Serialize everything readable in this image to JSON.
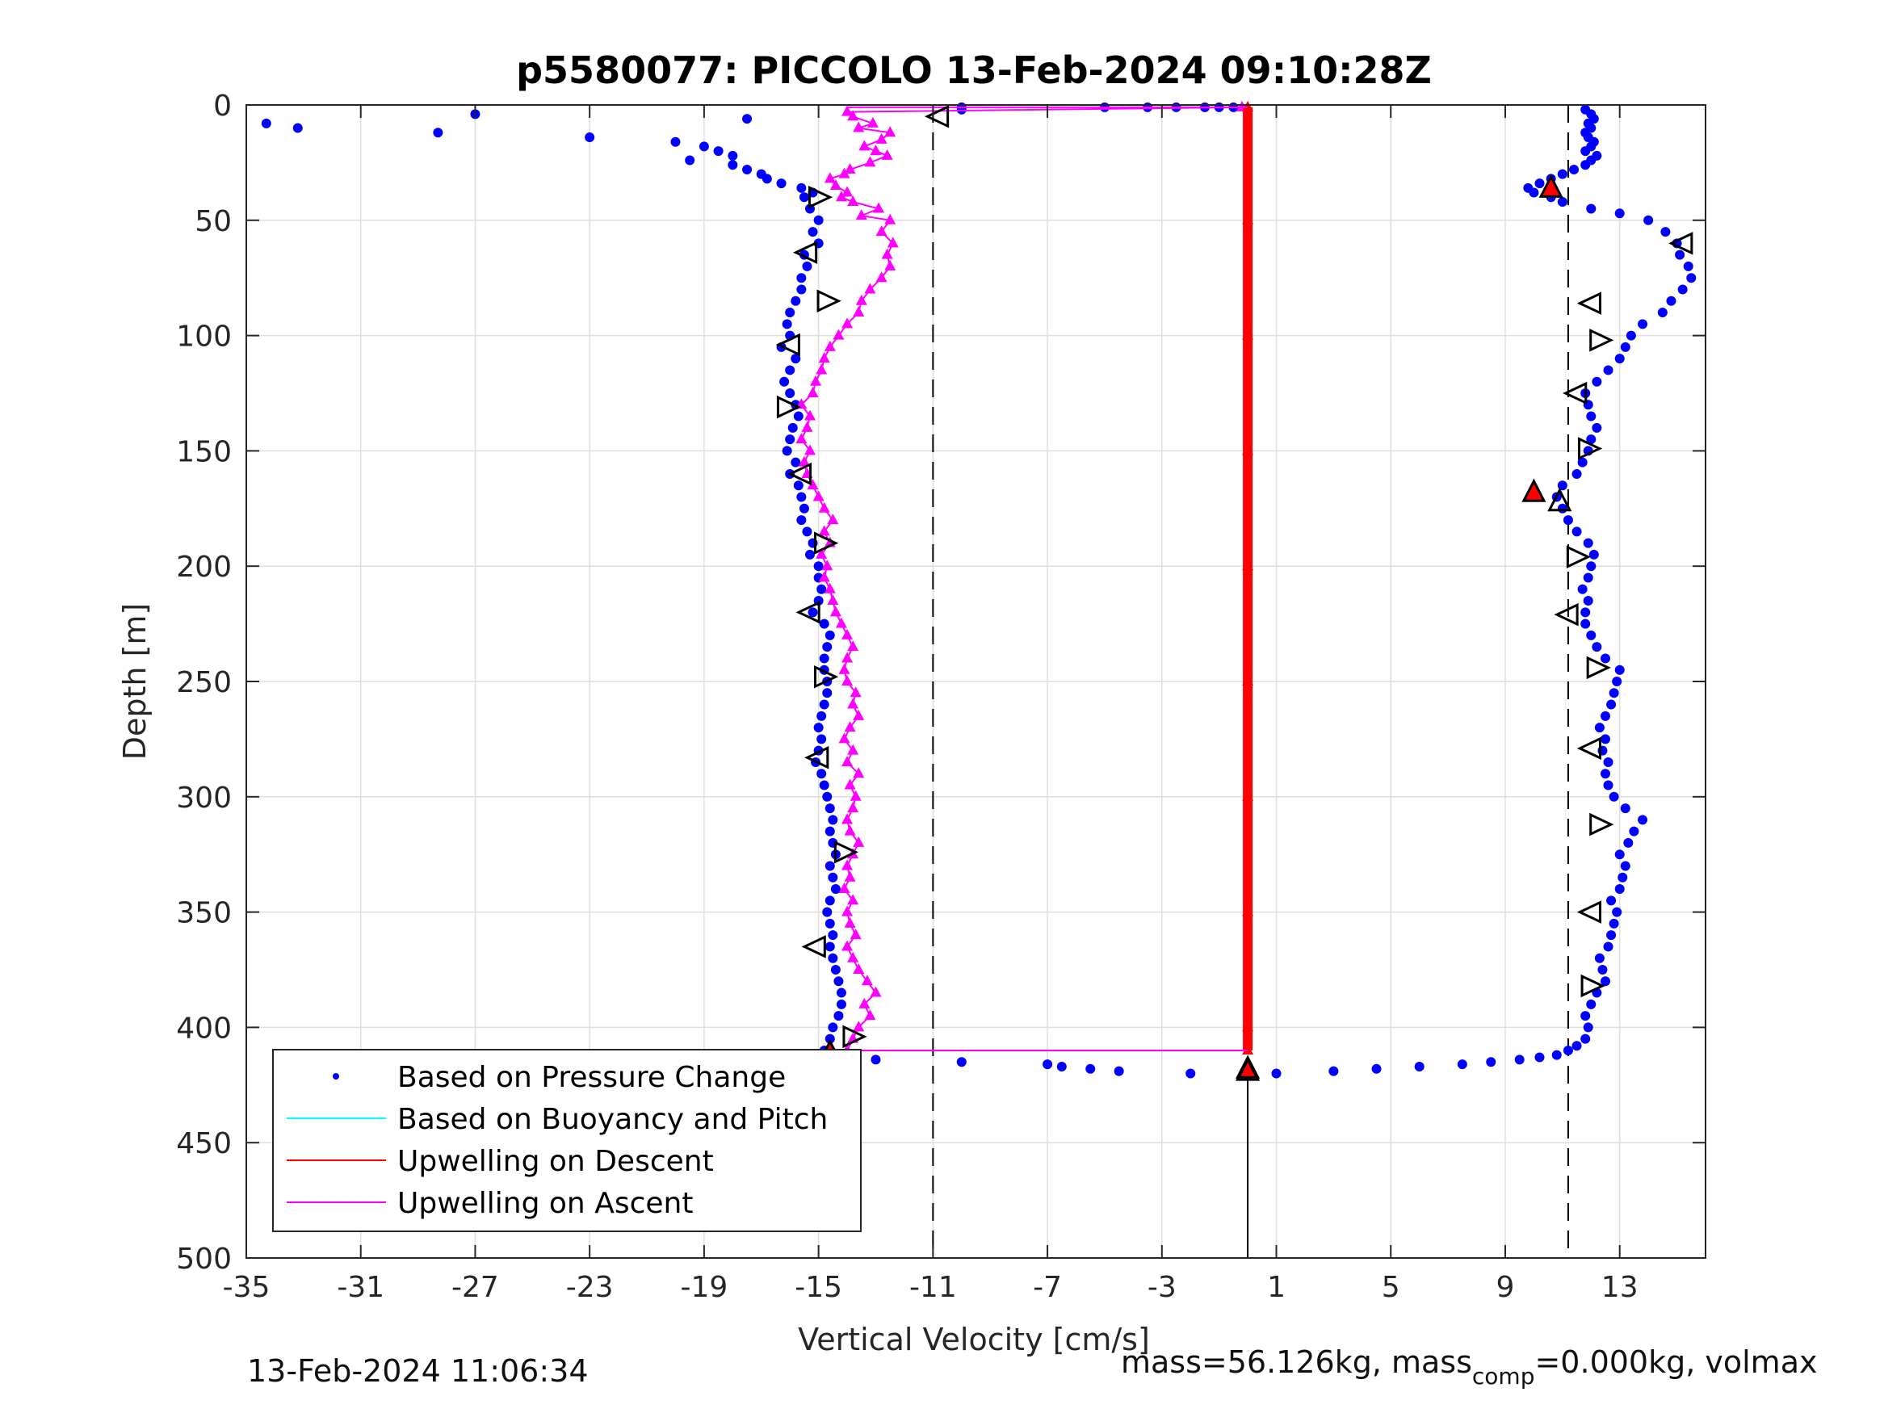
{
  "chart_data": {
    "type": "scatter",
    "title": "p5580077: PICCOLO 13-Feb-2024 09:10:28Z",
    "xlabel": "Vertical Velocity [cm/s]",
    "ylabel": "Depth [m]",
    "xlim": [
      -35,
      16
    ],
    "ylim": [
      0,
      500
    ],
    "y_reversed": true,
    "grid": true,
    "xticks": [
      "-35",
      "-31",
      "-27",
      "-23",
      "-19",
      "-15",
      "-11",
      "-7",
      "-3",
      "1",
      "5",
      "9",
      "13"
    ],
    "yticks": [
      "0",
      "50",
      "100",
      "150",
      "200",
      "250",
      "300",
      "350",
      "400",
      "450",
      "500"
    ],
    "legend_position": "bottom-left",
    "legend": [
      "Based on Pressure Change",
      "Based on Buoyancy and Pitch",
      "Upwelling on Descent",
      "Upwelling on Ascent"
    ],
    "colors": {
      "pressure": "#0000ff",
      "buoyancy": "#00ffff",
      "upwell_descent": "#ff0000",
      "upwell_ascent": "#ff00ff"
    },
    "reference_lines": {
      "dashed_x": [
        -11,
        11.2
      ],
      "solid_x": 0
    },
    "series": [
      {
        "name": "Based on Pressure Change",
        "profile": "descent",
        "depth": [
          2,
          4,
          6,
          8,
          10,
          12,
          14,
          16,
          18,
          20,
          22,
          24,
          26,
          28,
          30,
          32,
          34,
          36,
          38,
          40,
          45,
          50,
          55,
          60,
          65,
          70,
          75,
          80,
          85,
          90,
          95,
          100,
          105,
          110,
          115,
          120,
          125,
          130,
          135,
          140,
          145,
          150,
          155,
          160,
          165,
          170,
          175,
          180,
          185,
          190,
          195,
          200,
          205,
          210,
          215,
          220,
          225,
          230,
          235,
          240,
          245,
          250,
          255,
          260,
          265,
          270,
          275,
          280,
          285,
          290,
          295,
          300,
          305,
          310,
          315,
          320,
          325,
          330,
          335,
          340,
          345,
          350,
          355,
          360,
          365,
          370,
          375,
          380,
          385,
          390,
          395,
          400,
          405,
          410,
          412
        ],
        "velocity": [
          -10.0,
          -27.0,
          -17.5,
          -34.3,
          -33.2,
          -28.3,
          -23.0,
          -20.0,
          -19.0,
          -18.5,
          -18.0,
          -19.5,
          -18.0,
          -17.5,
          -17.0,
          -16.8,
          -16.3,
          -15.6,
          -15.2,
          -15.5,
          -15.3,
          -15.0,
          -15.2,
          -15.0,
          -15.5,
          -15.4,
          -15.6,
          -15.6,
          -15.8,
          -16.0,
          -16.1,
          -16.0,
          -16.3,
          -15.8,
          -16.0,
          -16.2,
          -16.0,
          -15.8,
          -15.7,
          -15.9,
          -16.0,
          -16.1,
          -15.8,
          -16.0,
          -15.7,
          -15.6,
          -15.5,
          -15.6,
          -15.4,
          -15.2,
          -15.3,
          -15.0,
          -15.0,
          -14.9,
          -15.0,
          -15.2,
          -14.8,
          -14.6,
          -14.7,
          -14.8,
          -14.8,
          -14.7,
          -14.7,
          -14.8,
          -14.9,
          -15.0,
          -14.9,
          -15.0,
          -15.1,
          -14.9,
          -14.8,
          -14.7,
          -14.6,
          -14.5,
          -14.6,
          -14.5,
          -14.4,
          -14.6,
          -14.5,
          -14.4,
          -14.6,
          -14.7,
          -14.6,
          -14.5,
          -14.6,
          -14.5,
          -14.4,
          -14.3,
          -14.2,
          -14.2,
          -14.3,
          -14.5,
          -14.6,
          -14.8,
          -14.5
        ]
      },
      {
        "name": "Based on Pressure Change",
        "profile": "descent-surface",
        "depth": [
          1,
          1,
          1,
          1,
          1,
          1,
          1
        ],
        "velocity": [
          -10.0,
          -5.0,
          -3.5,
          -2.5,
          -1.5,
          -1.0,
          -0.5
        ]
      },
      {
        "name": "Based on Pressure Change",
        "profile": "apogee",
        "depth": [
          414,
          415,
          416,
          417,
          418,
          419,
          420,
          421
        ],
        "velocity": [
          -13.0,
          -10.0,
          -7.0,
          -6.5,
          -5.5,
          -4.5,
          -2.0,
          0.0
        ]
      },
      {
        "name": "Based on Pressure Change",
        "profile": "ascent",
        "depth": [
          420,
          419,
          418,
          417,
          416,
          415,
          414,
          413,
          412,
          410,
          408,
          405,
          400,
          395,
          390,
          385,
          380,
          375,
          370,
          365,
          360,
          355,
          350,
          345,
          340,
          335,
          330,
          325,
          320,
          315,
          310,
          305,
          300,
          295,
          290,
          285,
          280,
          275,
          270,
          265,
          260,
          255,
          250,
          245,
          240,
          235,
          230,
          225,
          220,
          215,
          210,
          205,
          200,
          195,
          190,
          185,
          180,
          175,
          170,
          165,
          160,
          155,
          150,
          145,
          140,
          135,
          130,
          125,
          120,
          115,
          110,
          105,
          100,
          95,
          90,
          85,
          80,
          75,
          70,
          65,
          60,
          55,
          50,
          47,
          45,
          42,
          40,
          38,
          36,
          34,
          32,
          30,
          28,
          26,
          24,
          22,
          20,
          18,
          16,
          14,
          12,
          10,
          8,
          6,
          4,
          2
        ],
        "velocity": [
          1.0,
          3.0,
          4.5,
          6.0,
          7.5,
          8.5,
          9.5,
          10.2,
          10.8,
          11.2,
          11.5,
          11.8,
          11.9,
          11.8,
          12.0,
          12.2,
          12.5,
          12.4,
          12.3,
          12.6,
          12.7,
          12.8,
          12.9,
          12.7,
          13.0,
          13.1,
          13.2,
          13.0,
          13.3,
          13.5,
          13.8,
          13.2,
          12.8,
          12.6,
          12.5,
          12.6,
          12.4,
          12.5,
          12.3,
          12.5,
          12.7,
          12.8,
          12.9,
          13.0,
          12.5,
          12.2,
          12.0,
          11.8,
          11.8,
          11.9,
          11.7,
          11.9,
          12.0,
          12.1,
          11.9,
          11.5,
          11.2,
          11.0,
          10.8,
          11.0,
          11.5,
          11.7,
          11.9,
          12.0,
          12.2,
          12.0,
          11.9,
          11.8,
          12.2,
          12.6,
          13.0,
          13.2,
          13.4,
          13.8,
          14.5,
          14.8,
          15.2,
          15.5,
          15.4,
          15.1,
          15.0,
          14.6,
          14.0,
          13.0,
          12.0,
          11.0,
          10.6,
          10.0,
          9.8,
          10.2,
          10.6,
          11.0,
          11.4,
          11.8,
          12.0,
          12.2,
          11.8,
          12.0,
          12.1,
          11.9,
          11.8,
          12.0,
          11.9,
          12.1,
          12.0,
          11.8
        ]
      },
      {
        "name": "Upwelling on Ascent",
        "depth": [
          410,
          405,
          400,
          395,
          390,
          385,
          380,
          375,
          370,
          365,
          360,
          355,
          350,
          345,
          340,
          335,
          330,
          325,
          320,
          315,
          310,
          305,
          300,
          295,
          290,
          285,
          280,
          275,
          270,
          265,
          260,
          255,
          250,
          245,
          240,
          235,
          230,
          225,
          220,
          215,
          210,
          205,
          200,
          195,
          190,
          185,
          180,
          175,
          170,
          165,
          160,
          155,
          150,
          145,
          140,
          135,
          130,
          125,
          120,
          115,
          110,
          105,
          100,
          95,
          90,
          85,
          80,
          75,
          70,
          65,
          60,
          55,
          50,
          48,
          45,
          42,
          40,
          38,
          35,
          32,
          30,
          28,
          25,
          22,
          20,
          18,
          15,
          12,
          10,
          8,
          5,
          3,
          1
        ],
        "velocity": [
          -14.0,
          -13.8,
          -13.6,
          -13.2,
          -13.4,
          -13.0,
          -13.3,
          -13.6,
          -13.8,
          -14.0,
          -13.7,
          -13.9,
          -14.0,
          -13.8,
          -14.1,
          -13.9,
          -14.0,
          -13.8,
          -13.6,
          -13.9,
          -14.0,
          -13.8,
          -13.7,
          -13.9,
          -13.6,
          -14.0,
          -13.8,
          -14.1,
          -13.9,
          -13.6,
          -13.8,
          -13.7,
          -14.0,
          -14.1,
          -14.0,
          -13.8,
          -14.0,
          -14.2,
          -14.4,
          -14.5,
          -14.6,
          -14.8,
          -14.7,
          -14.9,
          -14.6,
          -14.8,
          -14.5,
          -14.8,
          -15.0,
          -15.2,
          -15.4,
          -15.5,
          -15.3,
          -15.6,
          -15.4,
          -15.3,
          -15.6,
          -15.2,
          -15.1,
          -14.9,
          -14.8,
          -14.6,
          -14.3,
          -14.0,
          -13.6,
          -13.5,
          -13.2,
          -12.8,
          -12.5,
          -12.6,
          -12.4,
          -12.8,
          -12.5,
          -13.5,
          -12.9,
          -13.8,
          -14.2,
          -14.0,
          -14.4,
          -14.6,
          -14.1,
          -13.9,
          -13.2,
          -12.6,
          -13.0,
          -13.4,
          -12.8,
          -12.5,
          -13.6,
          -13.1,
          -13.8,
          -14.0,
          -0.2
        ]
      },
      {
        "name": "Upwelling on Descent",
        "depth": [
          1,
          50,
          100,
          150,
          200,
          250,
          300,
          350,
          400,
          410
        ],
        "velocity": [
          0.0,
          0.0,
          0.0,
          0.0,
          0.0,
          0.0,
          0.0,
          0.0,
          0.0,
          0.0
        ]
      }
    ],
    "markers": {
      "descent": [
        {
          "depth": 5,
          "velocity": -10.8,
          "dir": "left"
        },
        {
          "depth": 40,
          "velocity": -15.0,
          "dir": "right"
        },
        {
          "depth": 64,
          "velocity": -15.4,
          "dir": "left"
        },
        {
          "depth": 85,
          "velocity": -14.7,
          "dir": "right"
        },
        {
          "depth": 104,
          "velocity": -16.0,
          "dir": "left"
        },
        {
          "depth": 131,
          "velocity": -16.1,
          "dir": "right"
        },
        {
          "depth": 160,
          "velocity": -15.6,
          "dir": "left"
        },
        {
          "depth": 190,
          "velocity": -14.8,
          "dir": "right"
        },
        {
          "depth": 220,
          "velocity": -15.3,
          "dir": "left"
        },
        {
          "depth": 248,
          "velocity": -14.8,
          "dir": "right"
        },
        {
          "depth": 283,
          "velocity": -15.0,
          "dir": "left"
        },
        {
          "depth": 324,
          "velocity": -14.1,
          "dir": "right"
        },
        {
          "depth": 365,
          "velocity": -15.1,
          "dir": "left"
        },
        {
          "depth": 404,
          "velocity": -13.8,
          "dir": "right"
        }
      ],
      "ascent": [
        {
          "depth": 60,
          "velocity": 15.2,
          "dir": "left"
        },
        {
          "depth": 86,
          "velocity": 12.0,
          "dir": "left"
        },
        {
          "depth": 102,
          "velocity": 12.3,
          "dir": "right"
        },
        {
          "depth": 125,
          "velocity": 11.5,
          "dir": "left"
        },
        {
          "depth": 149,
          "velocity": 11.9,
          "dir": "right"
        },
        {
          "depth": 196,
          "velocity": 11.5,
          "dir": "right"
        },
        {
          "depth": 221,
          "velocity": 11.2,
          "dir": "left"
        },
        {
          "depth": 244,
          "velocity": 12.2,
          "dir": "right"
        },
        {
          "depth": 279,
          "velocity": 12.0,
          "dir": "left"
        },
        {
          "depth": 312,
          "velocity": 12.3,
          "dir": "right"
        },
        {
          "depth": 350,
          "velocity": 12.0,
          "dir": "left"
        },
        {
          "depth": 382,
          "velocity": 12.0,
          "dir": "right"
        }
      ],
      "up": [
        {
          "depth": 36,
          "velocity": 10.6,
          "red": true
        },
        {
          "depth": 168,
          "velocity": 10.0,
          "red": true
        },
        {
          "depth": 172,
          "velocity": 10.9,
          "red": false
        },
        {
          "depth": 411,
          "velocity": -14.6,
          "red": true
        },
        {
          "depth": 418,
          "velocity": 0.0,
          "red": true
        },
        {
          "depth": 419,
          "velocity": 0.0,
          "red": false
        }
      ]
    }
  },
  "footer": {
    "timestamp": "13-Feb-2024 11:06:34",
    "mass_prefix": "mass=56.126kg, mass",
    "mass_sub": "comp",
    "mass_suffix": "=0.000kg, volmax"
  }
}
